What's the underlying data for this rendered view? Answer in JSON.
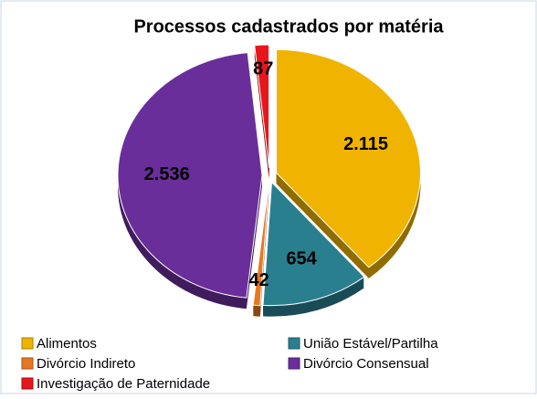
{
  "chart_data": {
    "type": "pie",
    "title": "Processos cadastrados por matéria",
    "categories": [
      "Alimentos",
      "União Estável/Partilha",
      "Divórcio Indireto",
      "Divórcio Consensual",
      "Investigação de Paternidade"
    ],
    "values": [
      2115,
      654,
      42,
      2536,
      87
    ],
    "value_labels": [
      "2.115",
      "654",
      "42",
      "2.536",
      "87"
    ],
    "colors": [
      "#f0b400",
      "#2a7f8f",
      "#e87722",
      "#6a2e9a",
      "#e8161b"
    ]
  }
}
